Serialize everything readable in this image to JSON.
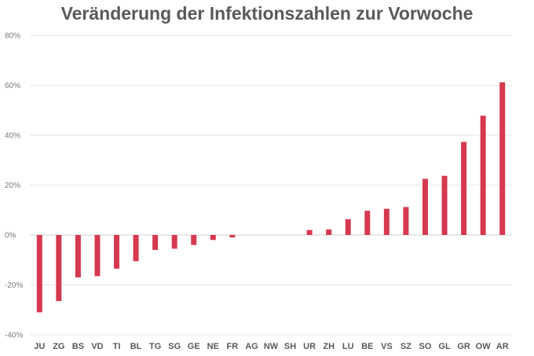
{
  "chart_data": {
    "type": "bar",
    "title": "Veränderung der Infektionszahlen zur Vorwoche",
    "xlabel": "",
    "ylabel": "",
    "ylim": [
      -0.4,
      0.8
    ],
    "yticks": [
      0.8,
      0.6,
      0.4,
      0.2,
      0.0,
      -0.2,
      -0.4
    ],
    "ytick_labels": [
      "80%",
      "60%",
      "40%",
      "20%",
      "0%",
      "-20%",
      "-40%"
    ],
    "grid": true,
    "bar_color": "#d6394f",
    "categories": [
      "JU",
      "ZG",
      "BS",
      "VD",
      "TI",
      "BL",
      "TG",
      "SG",
      "GE",
      "NE",
      "FR",
      "AG",
      "NW",
      "SH",
      "UR",
      "ZH",
      "LU",
      "BE",
      "VS",
      "SZ",
      "SO",
      "GL",
      "GR",
      "OW",
      "AR"
    ],
    "values": [
      -0.31,
      -0.265,
      -0.17,
      -0.165,
      -0.135,
      -0.105,
      -0.06,
      -0.055,
      -0.04,
      -0.02,
      -0.01,
      0.0,
      0.0,
      0.0,
      0.02,
      0.022,
      0.063,
      0.097,
      0.105,
      0.112,
      0.225,
      0.237,
      0.373,
      0.478,
      0.612
    ]
  }
}
